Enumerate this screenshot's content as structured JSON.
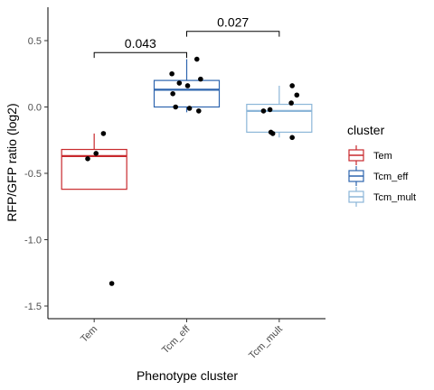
{
  "chart_data": {
    "type": "boxplot",
    "xlabel": "Phenotype cluster",
    "ylabel": "RFP/GFP ratio (log2)",
    "ylim": [
      -1.6,
      0.75
    ],
    "yticks": [
      {
        "value": 0.5,
        "label": "0.5"
      },
      {
        "value": 0.0,
        "label": "0.0"
      },
      {
        "value": -0.5,
        "label": "-0.5"
      },
      {
        "value": -1.0,
        "label": "-1.0"
      },
      {
        "value": -1.5,
        "label": "-1.5"
      }
    ],
    "grid": false,
    "legend": {
      "title": "cluster",
      "position": "right"
    },
    "categories": [
      "Tem",
      "Tcm_eff",
      "Tcm_mult"
    ],
    "series": [
      {
        "name": "Tem",
        "color": "#c8292d",
        "box": {
          "whisker_low": -0.62,
          "q1": -0.62,
          "median": -0.37,
          "q3": -0.32,
          "whisker_high": -0.2
        },
        "points": [
          {
            "jitter": 0.1,
            "y": -0.2
          },
          {
            "jitter": 0.02,
            "y": -0.35
          },
          {
            "jitter": -0.07,
            "y": -0.39
          },
          {
            "jitter": 0.19,
            "y": -1.33
          }
        ]
      },
      {
        "name": "Tcm_eff",
        "color": "#2d64ae",
        "box": {
          "whisker_low": -0.04,
          "q1": 0.0,
          "median": 0.13,
          "q3": 0.2,
          "whisker_high": 0.36
        },
        "points": [
          {
            "jitter": 0.11,
            "y": 0.36
          },
          {
            "jitter": -0.16,
            "y": 0.25
          },
          {
            "jitter": 0.15,
            "y": 0.21
          },
          {
            "jitter": -0.08,
            "y": 0.18
          },
          {
            "jitter": 0.01,
            "y": 0.16
          },
          {
            "jitter": -0.15,
            "y": 0.1
          },
          {
            "jitter": -0.12,
            "y": 0.0
          },
          {
            "jitter": 0.03,
            "y": -0.01
          },
          {
            "jitter": 0.13,
            "y": -0.03
          }
        ]
      },
      {
        "name": "Tcm_mult",
        "color": "#8cb6d8",
        "box": {
          "whisker_low": -0.23,
          "q1": -0.19,
          "median": -0.03,
          "q3": 0.02,
          "whisker_high": 0.16
        },
        "points": [
          {
            "jitter": 0.14,
            "y": 0.16
          },
          {
            "jitter": 0.19,
            "y": 0.09
          },
          {
            "jitter": 0.13,
            "y": 0.03
          },
          {
            "jitter": -0.1,
            "y": -0.02
          },
          {
            "jitter": -0.17,
            "y": -0.03
          },
          {
            "jitter": -0.09,
            "y": -0.19
          },
          {
            "jitter": -0.07,
            "y": -0.2
          },
          {
            "jitter": 0.14,
            "y": -0.23
          }
        ]
      }
    ],
    "annotations": [
      {
        "from": "Tem",
        "to": "Tcm_eff",
        "label": "0.043",
        "y": 0.41,
        "tick_low": 0.37
      },
      {
        "from": "Tcm_eff",
        "to": "Tcm_mult",
        "label": "0.027",
        "y": 0.57,
        "tick_low": 0.53
      }
    ]
  }
}
